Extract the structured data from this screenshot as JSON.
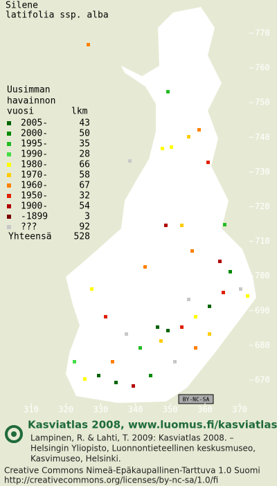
{
  "title": [
    "Silene",
    "latifolia ssp. alba"
  ],
  "legend": {
    "heading": [
      "Uusimman",
      "havainnon",
      "vuosi"
    ],
    "count_header": "lkm",
    "rows": [
      {
        "label": "2005-",
        "count": "43",
        "color": "#006400"
      },
      {
        "label": "2000-",
        "count": "50",
        "color": "#008a00"
      },
      {
        "label": "1995-",
        "count": "35",
        "color": "#22bb22"
      },
      {
        "label": "1990-",
        "count": "28",
        "color": "#44dd44"
      },
      {
        "label": "1980-",
        "count": "66",
        "color": "#ffff00"
      },
      {
        "label": "1970-",
        "count": "58",
        "color": "#ffcc00"
      },
      {
        "label": "1960-",
        "count": "67",
        "color": "#ff8000"
      },
      {
        "label": "1950-",
        "count": "32",
        "color": "#e02000"
      },
      {
        "label": "1900-",
        "count": "54",
        "color": "#b00000"
      },
      {
        "label": "-1899",
        "count": "3",
        "color": "#7a0000"
      },
      {
        "label": "???",
        "count": "92",
        "color": "#c8c8c8"
      }
    ],
    "total_label": "Yhteensä",
    "total": "528"
  },
  "map": {
    "yticks": [
      770,
      760,
      750,
      740,
      730,
      720,
      710,
      700,
      690,
      680,
      670
    ],
    "xticks": [
      310,
      320,
      330,
      340,
      350,
      360,
      370
    ],
    "license_badge": "BY-NC-SA"
  },
  "footer": {
    "brand": "Kasviatlas 2008, www.luomus.fi/kasviatlas",
    "citation": [
      "Lampinen, R. & Lahti, T. 2009: Kasviatlas 2008. –",
      "Helsingin Yliopisto, Luonnontieteellinen keskusmuseo,",
      "Kasvimuseo, Helsinki."
    ],
    "license": [
      "Creative Commons Nimeä-Epäkaupallinen-Tarttuva 1.0 Suomi",
      "http://creativecommons.org/licenses/by-nc-sa/1.0/fi"
    ]
  }
}
